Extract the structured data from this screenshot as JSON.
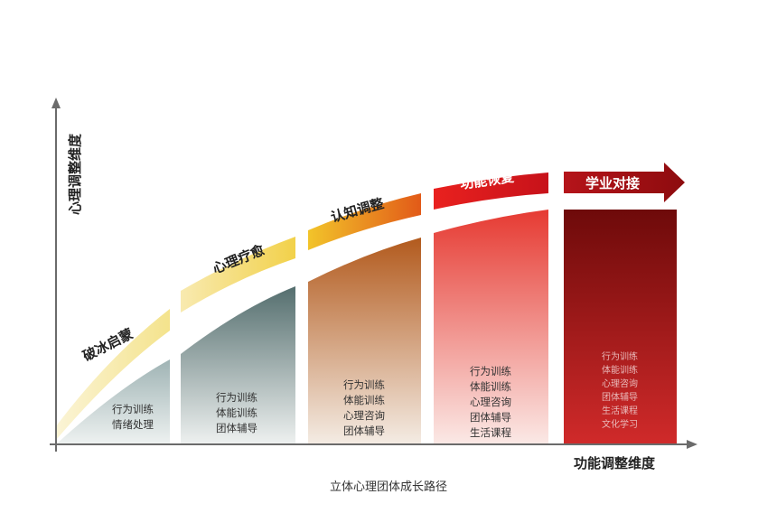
{
  "axes": {
    "y_label": "心理调整维度",
    "x_label": "功能调整维度",
    "caption": "立体心理团体成长路径"
  },
  "stages": [
    {
      "title": "破冰启蒙",
      "items": [
        "行为训练",
        "情绪处理"
      ]
    },
    {
      "title": "心理疗愈",
      "items": [
        "行为训练",
        "体能训练",
        "团体辅导"
      ]
    },
    {
      "title": "认知调整",
      "items": [
        "行为训练",
        "体能训练",
        "心理咨询",
        "团体辅导"
      ]
    },
    {
      "title": "功能恢复",
      "items": [
        "行为训练",
        "体能训练",
        "心理咨询",
        "团体辅导",
        "生活课程"
      ]
    },
    {
      "title": "学业对接",
      "items": [
        "行为训练",
        "体能训练",
        "心理咨询",
        "团体辅导",
        "生活课程",
        "文化学习"
      ]
    }
  ],
  "colors": {
    "axis": "#6b6b6b",
    "stage1_fill_top": "#9fb3b4",
    "stage2_fill_top": "#546e6e",
    "stage3_fill_top": "#b25a1d",
    "stage4_fill_top": "#e63a32",
    "stage5_fill_top": "#6e0a0a",
    "band_yellow": "#f2d65a",
    "band_orange": "#e8921f",
    "band_red": "#d61f24",
    "band_darkred": "#a10f12"
  }
}
